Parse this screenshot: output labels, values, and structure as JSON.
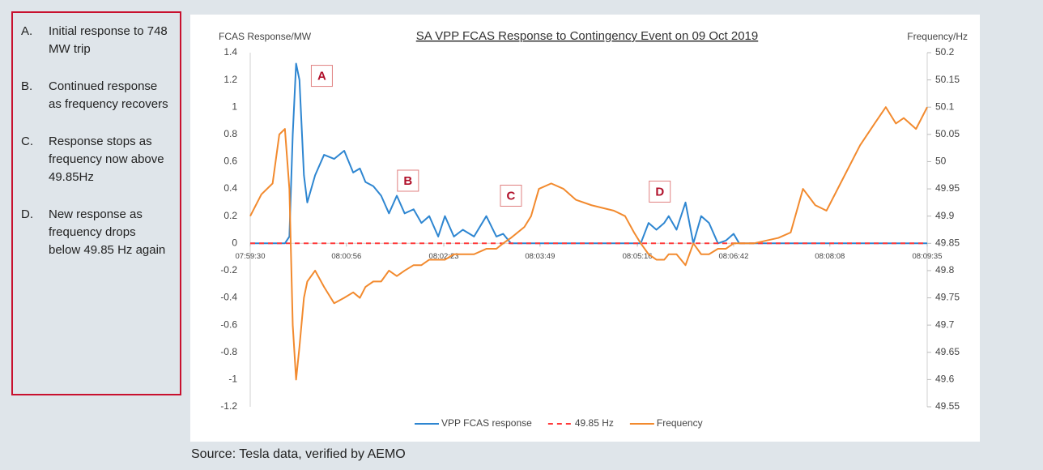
{
  "notes": [
    {
      "letter": "A.",
      "text": "Initial response to 748 MW trip"
    },
    {
      "letter": "B.",
      "text": "Continued response as frequency recovers"
    },
    {
      "letter": "C.",
      "text": "Response stops as frequency now above 49.85Hz"
    },
    {
      "letter": "D.",
      "text": "New response as frequency drops below 49.85 Hz again"
    }
  ],
  "source": "Source: Tesla data, verified by AEMO",
  "chart_data": {
    "type": "line",
    "title": "SA VPP FCAS Response to Contingency Event on 09 Oct 2019",
    "y_label": "FCAS Response/MW",
    "y2_label": "Frequency/Hz",
    "x": [
      "07:59:30",
      "07:59:40",
      "07:59:50",
      "07:59:56",
      "08:00:01",
      "08:00:05",
      "08:00:08",
      "08:00:11",
      "08:00:14",
      "08:00:18",
      "08:00:21",
      "08:00:28",
      "08:00:36",
      "08:00:45",
      "08:00:54",
      "08:01:02",
      "08:01:08",
      "08:01:13",
      "08:01:20",
      "08:01:27",
      "08:01:34",
      "08:01:41",
      "08:01:48",
      "08:01:56",
      "08:02:03",
      "08:02:10",
      "08:02:18",
      "08:02:24",
      "08:02:32",
      "08:02:40",
      "08:02:50",
      "08:03:01",
      "08:03:10",
      "08:03:16",
      "08:03:23",
      "08:03:35",
      "08:03:41",
      "08:03:48",
      "08:03:59",
      "08:04:10",
      "08:04:21",
      "08:04:35",
      "08:04:55",
      "08:05:05",
      "08:05:13",
      "08:05:19",
      "08:05:26",
      "08:05:33",
      "08:05:40",
      "08:05:44",
      "08:05:51",
      "08:05:59",
      "08:06:06",
      "08:06:13",
      "08:06:20",
      "08:06:28",
      "08:06:35",
      "08:06:42",
      "08:06:47",
      "08:07:00",
      "08:07:22",
      "08:07:33",
      "08:07:44",
      "08:07:55",
      "08:08:05",
      "08:08:20",
      "08:08:35",
      "08:08:48",
      "08:08:58",
      "08:09:07",
      "08:09:14",
      "08:09:25",
      "08:09:35"
    ],
    "xlim": [
      "07:59:30",
      "08:09:35"
    ],
    "xticks": [
      "07:59:30",
      "08:00:56",
      "08:02:23",
      "08:03:49",
      "08:05:16",
      "08:06:42",
      "08:08:08",
      "08:09:35"
    ],
    "ylim": [
      -1.2,
      1.4
    ],
    "yticks": [
      -1.2,
      -1,
      -0.8,
      -0.6,
      -0.4,
      -0.2,
      0,
      0.2,
      0.4,
      0.6,
      0.8,
      1,
      1.2,
      1.4
    ],
    "y2lim": [
      49.55,
      50.2
    ],
    "y2ticks": [
      49.55,
      49.6,
      49.65,
      49.7,
      49.75,
      49.8,
      49.85,
      49.9,
      49.95,
      50,
      50.05,
      50.1,
      50.15,
      50.2
    ],
    "grid": false,
    "legend": "bottom",
    "series": [
      {
        "name": "VPP FCAS response",
        "color": "#2e86d1",
        "axis": "y",
        "values": [
          0,
          0,
          0,
          0,
          0,
          0.05,
          0.8,
          1.32,
          1.2,
          0.5,
          0.3,
          0.5,
          0.65,
          0.62,
          0.68,
          0.52,
          0.55,
          0.45,
          0.42,
          0.35,
          0.22,
          0.35,
          0.22,
          0.25,
          0.15,
          0.2,
          0.05,
          0.2,
          0.05,
          0.1,
          0.05,
          0.2,
          0.05,
          0.07,
          0,
          0,
          0,
          0,
          0,
          0,
          0,
          0,
          0,
          0,
          0,
          0,
          0.15,
          0.1,
          0.15,
          0.2,
          0.1,
          0.3,
          0,
          0.2,
          0.15,
          0,
          0.02,
          0.07,
          0,
          0,
          0,
          0,
          0,
          0,
          0,
          0,
          0,
          0,
          0,
          0,
          0,
          0,
          0
        ]
      },
      {
        "name": "49.85 Hz",
        "color": "#ff3b3b",
        "axis": "y2",
        "dashed": true,
        "value": 49.85
      },
      {
        "name": "Frequency",
        "color": "#f28a2e",
        "axis": "y2",
        "values": [
          49.9,
          49.94,
          49.96,
          50.05,
          50.06,
          49.95,
          49.7,
          49.6,
          49.66,
          49.75,
          49.78,
          49.8,
          49.77,
          49.74,
          49.75,
          49.76,
          49.75,
          49.77,
          49.78,
          49.78,
          49.8,
          49.79,
          49.8,
          49.81,
          49.81,
          49.82,
          49.82,
          49.82,
          49.83,
          49.83,
          49.83,
          49.84,
          49.84,
          49.85,
          49.86,
          49.88,
          49.9,
          49.95,
          49.96,
          49.95,
          49.93,
          49.92,
          49.91,
          49.9,
          49.87,
          49.85,
          49.83,
          49.82,
          49.82,
          49.83,
          49.83,
          49.81,
          49.85,
          49.83,
          49.83,
          49.84,
          49.84,
          49.85,
          49.85,
          49.85,
          49.86,
          49.87,
          49.95,
          49.92,
          49.91,
          49.97,
          50.03,
          50.07,
          50.1,
          50.07,
          50.08,
          50.06,
          50.1
        ]
      }
    ],
    "annotations": [
      {
        "text": "A",
        "x": "08:00:34",
        "y": 1.23
      },
      {
        "text": "B",
        "x": "08:01:51",
        "y": 0.46
      },
      {
        "text": "C",
        "x": "08:03:23",
        "y": 0.35
      },
      {
        "text": "D",
        "x": "08:05:36",
        "y": 0.38
      }
    ]
  }
}
